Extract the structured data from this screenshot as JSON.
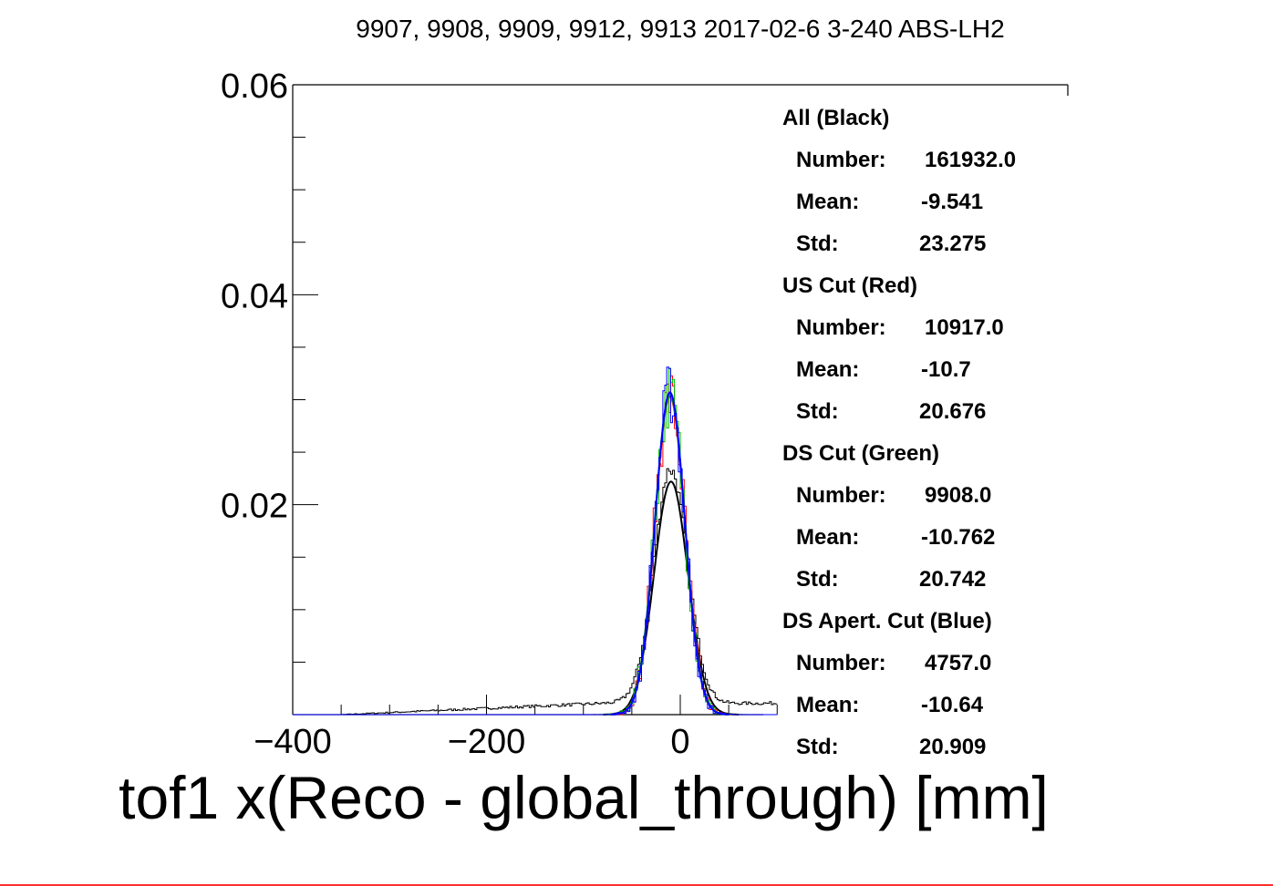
{
  "chart_data": {
    "type": "histogram",
    "title": "9907, 9908, 9909, 9912, 9913 2017-02-6 3-240 ABS-LH2",
    "xlabel": "tof1 x(Reco - global_through) [mm]",
    "ylabel": "",
    "xlim": [
      -400,
      400
    ],
    "ylim": [
      0,
      0.06
    ],
    "x_ticks": [
      -400,
      -200,
      0
    ],
    "x_tick_labels": [
      "−400",
      "−200",
      "0"
    ],
    "y_ticks": [
      0.02,
      0.04,
      0.06
    ],
    "y_tick_labels": [
      "0.02",
      "0.04",
      "0.06"
    ],
    "grid": false,
    "colors": {
      "all": "#000000",
      "us_cut": "#ff0000",
      "ds_cut": "#00c000",
      "ds_apert_cut": "#0000ff"
    },
    "series": [
      {
        "name": "All (Black)",
        "color": "#000000",
        "number": "161932.0",
        "mean": "-9.541",
        "std": "23.275",
        "peak": 0.0222,
        "fit_sigma": 17.5,
        "tail": 0.0012
      },
      {
        "name": "US Cut (Red)",
        "color": "#ff0000",
        "number": "10917.0",
        "mean": "-10.7",
        "std": "20.676",
        "peak": 0.0303,
        "fit_sigma": 15.5,
        "tail": 0.0
      },
      {
        "name": "DS Cut (Green)",
        "color": "#00c000",
        "number": "9908.0",
        "mean": "-10.762",
        "std": "20.742",
        "peak": 0.0305,
        "fit_sigma": 15.5,
        "tail": 0.0
      },
      {
        "name": "DS Apert. Cut (Blue)",
        "color": "#0000ff",
        "number": "4757.0",
        "mean": "-10.64",
        "std": "20.909",
        "peak": 0.0307,
        "fit_sigma": 15.3,
        "tail": 0.0
      }
    ]
  },
  "stats": {
    "number_label": "Number:",
    "mean_label": "Mean:",
    "std_label": "Std:"
  }
}
